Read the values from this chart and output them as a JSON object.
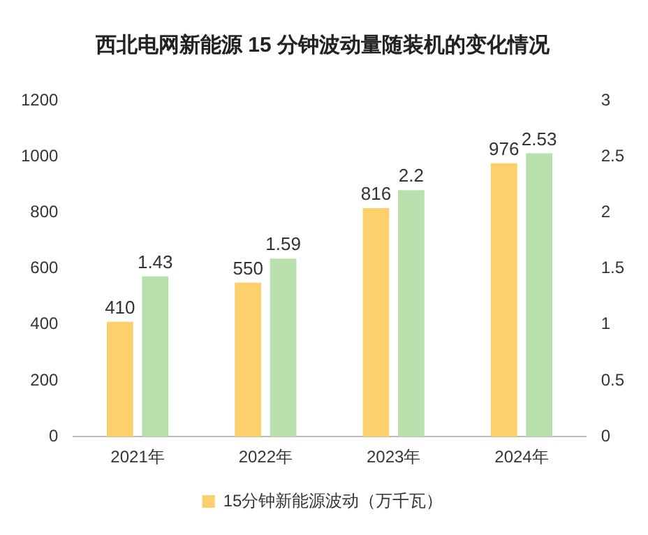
{
  "chart_data": {
    "type": "bar",
    "title": "西北电网新能源 15 分钟波动量随装机的变化情况",
    "categories": [
      "2021年",
      "2022年",
      "2023年",
      "2024年"
    ],
    "series": [
      {
        "name": "15分钟新能源波动（万千瓦）",
        "color": "#fdd06b",
        "values": [
          410,
          550,
          816,
          976
        ]
      },
      {
        "color": "#b8e0ad",
        "values": [
          1.43,
          1.59,
          2.2,
          2.53
        ],
        "axis": "y2"
      }
    ],
    "ylim": [
      0,
      1200
    ],
    "yticks": [
      0,
      200,
      400,
      600,
      800,
      1000,
      1200
    ],
    "y2lim": [
      0,
      3
    ],
    "y2ticks": [
      0,
      0.5,
      1,
      1.5,
      2,
      2.5,
      3
    ],
    "data_labels": true,
    "legend": "bottom",
    "grid": false
  }
}
